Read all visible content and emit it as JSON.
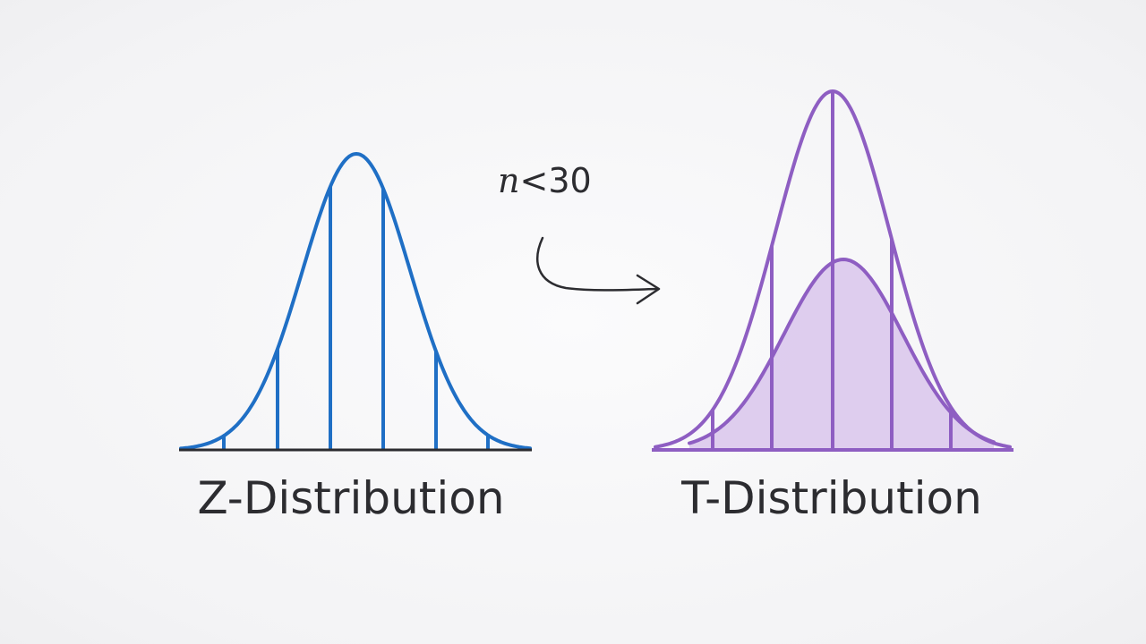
{
  "colors": {
    "background": "#f6f6f7",
    "z_curve": "#1f6fc5",
    "t_curve": "#8e5ec2",
    "t_fill": "#d9c6ec",
    "baseline": "#2c2c30",
    "text": "#2c2c30"
  },
  "left_panel": {
    "caption": "Z-Distribution"
  },
  "transition": {
    "condition_variable": "n",
    "condition_rest": "<30",
    "arrow_icon": "curved-arrow-right-icon"
  },
  "right_panel": {
    "caption": "T-Distribution"
  }
}
